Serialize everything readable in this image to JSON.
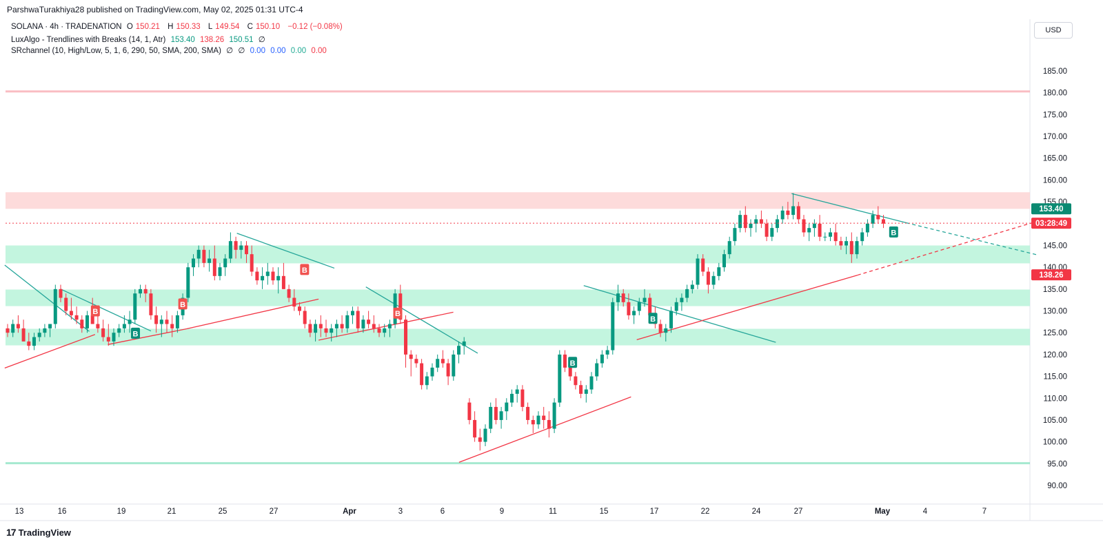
{
  "header": {
    "published_line": "ParshwaTurakhiya28 published on TradingView.com, May 02, 2025 01:31 UTC-4",
    "symbol_line": {
      "name": "SOLANA · 4h · TRADENATION",
      "o_label": "O",
      "o_val": "150.21",
      "h_label": "H",
      "h_val": "150.33",
      "l_label": "L",
      "l_val": "149.54",
      "c_label": "C",
      "c_val": "150.10",
      "change": "−0.12 (−0.08%)"
    },
    "indicator1": {
      "name": "LuxAlgo - Trendlines with Breaks (14, 1, Atr)",
      "v1": "153.40",
      "v2": "138.26",
      "v3": "150.51",
      "v4": "∅"
    },
    "indicator2": {
      "name": "SRchannel (10, High/Low, 5, 1, 6, 290, 50, SMA, 200, SMA)",
      "v1": "∅",
      "v2": "∅",
      "v3": "0.00",
      "v4": "0.00",
      "v5": "0.00",
      "v6": "0.00"
    },
    "currency_button": "USD"
  },
  "footer": {
    "brand": "TradingView",
    "brand_logo": "17"
  },
  "colors": {
    "up": "#089981",
    "down": "#f23645",
    "zone_green": "#b9f3d9",
    "zone_red": "#fdd5d5",
    "trend_teal": "#26a69a",
    "trend_red": "#f23645",
    "badge_teal": "#0a8f7a",
    "badge_red": "#f05350"
  },
  "chart_data": {
    "type": "candlestick",
    "symbol": "SOLANA",
    "timeframe": "4h",
    "y_range": [
      87,
      188
    ],
    "y_ticks": [
      "185.00",
      "180.00",
      "175.00",
      "170.00",
      "165.00",
      "160.00",
      "155.00",
      "150.00",
      "145.00",
      "140.00",
      "135.00",
      "130.00",
      "125.00",
      "120.00",
      "115.00",
      "110.00",
      "105.00",
      "100.00",
      "95.00",
      "90.00"
    ],
    "x_ticks": [
      "13",
      "16",
      "19",
      "21",
      "25",
      "27",
      "Apr",
      "3",
      "6",
      "9",
      "11",
      "15",
      "17",
      "22",
      "24",
      "27",
      "May",
      "4",
      "7"
    ],
    "price_labels": {
      "upper_trendline": "153.40",
      "countdown": "03:28:49",
      "lower_trendline": "138.26"
    },
    "current_price": 150.1,
    "zones": [
      {
        "type": "resistance",
        "low": 153.4,
        "high": 157.2
      },
      {
        "type": "support",
        "low": 140.9,
        "high": 145.0
      },
      {
        "type": "support",
        "low": 131.1,
        "high": 134.9
      },
      {
        "type": "support",
        "low": 122.1,
        "high": 125.9
      }
    ],
    "levels": [
      {
        "type": "resistance",
        "price": 180.3
      },
      {
        "type": "support",
        "price": 95.1
      }
    ],
    "trendlines": [
      {
        "kind": "down",
        "from": [
          -0.2,
          140.5
        ],
        "to": [
          5.7,
          125.3
        ]
      },
      {
        "kind": "down",
        "from": [
          3.7,
          135.0
        ],
        "to": [
          10.0,
          125.4
        ]
      },
      {
        "kind": "down",
        "from": [
          16.0,
          147.8
        ],
        "to": [
          22.8,
          139.8
        ]
      },
      {
        "kind": "down",
        "from": [
          25.0,
          135.5
        ],
        "to": [
          32.8,
          120.3
        ]
      },
      {
        "kind": "down",
        "from": [
          40.2,
          135.8
        ],
        "to": [
          53.6,
          122.8
        ]
      },
      {
        "kind": "down",
        "from": [
          54.7,
          156.9
        ],
        "to": [
          62.7,
          150.2
        ]
      },
      {
        "kind": "down_projection",
        "from": [
          62.7,
          150.2
        ],
        "to": [
          71.9,
          142.8
        ]
      },
      {
        "kind": "up",
        "from": [
          -0.2,
          116.9
        ],
        "to": [
          6.1,
          124.6
        ]
      },
      {
        "kind": "up",
        "from": [
          7.0,
          122.3
        ],
        "to": [
          12.5,
          125.9
        ]
      },
      {
        "kind": "up",
        "from": [
          12.5,
          125.9
        ],
        "to": [
          21.7,
          132.7
        ]
      },
      {
        "kind": "up",
        "from": [
          21.7,
          123.3
        ],
        "to": [
          31.1,
          129.7
        ]
      },
      {
        "kind": "up",
        "from": [
          31.5,
          95.3
        ],
        "to": [
          43.5,
          110.3
        ]
      },
      {
        "kind": "up",
        "from": [
          43.9,
          123.4
        ],
        "to": [
          59.3,
          138.2
        ]
      },
      {
        "kind": "up_projection",
        "from": [
          59.3,
          138.2
        ],
        "to": [
          71.9,
          150.6
        ]
      }
    ],
    "signals": [
      {
        "label": "B",
        "type": "down_break",
        "x": 6.1,
        "price": 130.0
      },
      {
        "label": "B",
        "type": "up_break",
        "x": 8.9,
        "price": 124.9
      },
      {
        "label": "B",
        "type": "down_break",
        "x": 12.2,
        "price": 131.6
      },
      {
        "label": "B",
        "type": "down_break",
        "x": 20.7,
        "price": 139.5
      },
      {
        "label": "B",
        "type": "down_break",
        "x": 27.2,
        "price": 129.5
      },
      {
        "label": "B",
        "type": "up_break",
        "x": 39.4,
        "price": 118.2
      },
      {
        "label": "B",
        "type": "up_break",
        "x": 45.0,
        "price": 128.3
      },
      {
        "label": "B",
        "type": "up_break",
        "x": 61.8,
        "price": 148.1
      }
    ],
    "candles": [
      [
        126,
        127,
        124,
        125
      ],
      [
        125,
        128,
        124,
        127
      ],
      [
        127,
        129,
        125,
        126
      ],
      [
        126,
        128,
        124,
        123
      ],
      [
        123,
        125,
        121,
        122
      ],
      [
        122,
        125,
        121,
        124
      ],
      [
        124,
        126,
        123,
        125
      ],
      [
        125,
        127,
        124,
        126
      ],
      [
        126,
        127,
        124,
        127
      ],
      [
        127,
        136,
        126,
        135
      ],
      [
        135,
        136,
        132,
        133
      ],
      [
        133,
        134,
        129,
        130
      ],
      [
        130,
        133,
        128,
        129
      ],
      [
        129,
        131,
        127,
        128
      ],
      [
        128,
        129,
        125,
        126
      ],
      [
        126,
        130,
        125,
        129
      ],
      [
        129,
        133,
        127,
        127
      ],
      [
        127,
        130,
        125,
        126
      ],
      [
        126,
        128,
        123,
        124
      ],
      [
        124,
        127,
        122,
        123
      ],
      [
        123,
        126,
        122,
        125
      ],
      [
        125,
        127,
        124,
        126
      ],
      [
        126,
        129,
        125,
        127
      ],
      [
        127,
        130,
        125,
        128
      ],
      [
        128,
        135,
        127,
        134
      ],
      [
        134,
        136,
        133,
        135
      ],
      [
        135,
        136,
        132,
        134
      ],
      [
        134,
        135,
        128,
        129
      ],
      [
        129,
        131,
        125,
        127
      ],
      [
        127,
        129,
        124,
        128
      ],
      [
        128,
        130,
        125,
        127
      ],
      [
        127,
        129,
        124,
        126
      ],
      [
        126,
        130,
        125,
        129
      ],
      [
        129,
        134,
        128,
        133
      ],
      [
        133,
        141,
        132,
        140
      ],
      [
        140,
        143,
        138,
        142
      ],
      [
        142,
        145,
        140,
        144
      ],
      [
        144,
        145,
        140,
        141
      ],
      [
        141,
        144,
        139,
        142
      ],
      [
        142,
        145,
        137,
        138
      ],
      [
        138,
        141,
        137,
        140
      ],
      [
        140,
        143,
        138,
        142
      ],
      [
        142,
        148,
        141,
        146
      ],
      [
        146,
        147,
        142,
        144
      ],
      [
        144,
        146,
        142,
        145
      ],
      [
        145,
        146,
        141,
        143
      ],
      [
        143,
        145,
        138,
        139
      ],
      [
        139,
        140,
        136,
        137
      ],
      [
        137,
        140,
        135,
        138
      ],
      [
        138,
        141,
        136,
        139
      ],
      [
        139,
        140,
        136,
        137
      ],
      [
        137,
        140,
        134,
        138
      ],
      [
        138,
        141,
        135,
        135
      ],
      [
        135,
        136,
        132,
        133
      ],
      [
        133,
        135,
        130,
        131
      ],
      [
        131,
        132,
        129,
        130
      ],
      [
        130,
        131,
        126,
        127
      ],
      [
        127,
        128,
        124,
        125
      ],
      [
        125,
        128,
        123,
        127
      ],
      [
        127,
        129,
        124,
        126
      ],
      [
        126,
        128,
        124,
        125
      ],
      [
        125,
        127,
        123,
        126
      ],
      [
        126,
        128,
        124,
        127
      ],
      [
        127,
        129,
        125,
        126
      ],
      [
        126,
        130,
        125,
        129
      ],
      [
        129,
        131,
        127,
        130
      ],
      [
        130,
        131,
        125,
        126
      ],
      [
        126,
        129,
        125,
        128
      ],
      [
        128,
        130,
        126,
        127
      ],
      [
        127,
        129,
        125,
        126
      ],
      [
        126,
        127,
        124,
        125
      ],
      [
        125,
        127,
        124,
        126
      ],
      [
        126,
        128,
        124,
        127
      ],
      [
        127,
        135,
        126,
        134
      ],
      [
        134,
        136,
        127,
        128
      ],
      [
        128,
        129,
        117,
        120
      ],
      [
        120,
        121,
        115,
        119
      ],
      [
        119,
        120,
        117,
        118
      ],
      [
        118,
        119,
        112,
        113
      ],
      [
        113,
        116,
        112,
        115
      ],
      [
        115,
        118,
        114,
        117
      ],
      [
        117,
        120,
        116,
        119
      ],
      [
        119,
        121,
        117,
        118
      ],
      [
        118,
        119,
        113,
        115
      ],
      [
        115,
        121,
        114,
        120
      ],
      [
        120,
        123,
        118,
        122
      ],
      [
        122,
        124,
        120,
        123
      ],
      [
        109,
        110,
        104,
        105
      ],
      [
        105,
        107,
        100,
        101
      ],
      [
        101,
        103,
        98,
        100
      ],
      [
        100,
        104,
        99,
        103
      ],
      [
        103,
        109,
        102,
        108
      ],
      [
        108,
        110,
        104,
        105
      ],
      [
        105,
        108,
        103,
        107
      ],
      [
        107,
        110,
        105,
        109
      ],
      [
        109,
        112,
        108,
        111
      ],
      [
        111,
        113,
        109,
        112
      ],
      [
        112,
        113,
        107,
        108
      ],
      [
        108,
        109,
        104,
        105
      ],
      [
        105,
        106,
        102,
        104
      ],
      [
        104,
        107,
        103,
        106
      ],
      [
        106,
        108,
        103,
        105
      ],
      [
        105,
        107,
        101,
        103
      ],
      [
        103,
        110,
        102,
        109
      ],
      [
        109,
        121,
        108,
        120
      ],
      [
        120,
        121,
        116,
        117
      ],
      [
        117,
        118,
        114,
        115
      ],
      [
        115,
        116,
        112,
        113
      ],
      [
        113,
        114,
        110,
        111
      ],
      [
        111,
        113,
        109,
        112
      ],
      [
        112,
        116,
        111,
        115
      ],
      [
        115,
        119,
        114,
        118
      ],
      [
        118,
        121,
        117,
        120
      ],
      [
        120,
        122,
        119,
        121
      ],
      [
        121,
        133,
        120,
        132
      ],
      [
        132,
        136,
        130,
        134
      ],
      [
        134,
        135,
        131,
        132
      ],
      [
        132,
        134,
        128,
        129
      ],
      [
        129,
        131,
        127,
        130
      ],
      [
        130,
        133,
        129,
        132
      ],
      [
        132,
        135,
        131,
        133
      ],
      [
        133,
        134,
        128,
        129
      ],
      [
        129,
        131,
        126,
        127
      ],
      [
        127,
        128,
        124,
        125
      ],
      [
        125,
        127,
        123,
        126
      ],
      [
        126,
        131,
        125,
        130
      ],
      [
        130,
        133,
        129,
        132
      ],
      [
        132,
        134,
        130,
        133
      ],
      [
        133,
        136,
        132,
        135
      ],
      [
        135,
        137,
        134,
        136
      ],
      [
        136,
        143,
        135,
        142
      ],
      [
        142,
        143,
        138,
        139
      ],
      [
        139,
        140,
        134,
        136
      ],
      [
        136,
        139,
        135,
        138
      ],
      [
        138,
        141,
        137,
        140
      ],
      [
        140,
        144,
        139,
        143
      ],
      [
        143,
        147,
        142,
        146
      ],
      [
        146,
        150,
        145,
        149
      ],
      [
        149,
        153,
        148,
        152
      ],
      [
        152,
        154,
        148,
        149
      ],
      [
        149,
        151,
        147,
        150
      ],
      [
        150,
        152,
        148,
        151
      ],
      [
        151,
        153,
        149,
        150
      ],
      [
        150,
        151,
        146,
        147
      ],
      [
        147,
        150,
        146,
        149
      ],
      [
        149,
        152,
        148,
        151
      ],
      [
        151,
        154,
        150,
        153
      ],
      [
        153,
        155,
        151,
        152
      ],
      [
        152,
        157,
        151,
        154
      ],
      [
        154,
        155,
        150,
        151
      ],
      [
        151,
        152,
        147,
        148
      ],
      [
        148,
        150,
        146,
        149
      ],
      [
        149,
        151,
        147,
        150
      ],
      [
        150,
        152,
        146,
        147
      ],
      [
        147,
        148,
        146,
        147
      ],
      [
        147,
        149,
        146,
        148
      ],
      [
        148,
        150,
        145,
        146
      ],
      [
        146,
        147,
        144,
        145
      ],
      [
        145,
        147,
        143,
        146
      ],
      [
        146,
        148,
        141,
        143
      ],
      [
        143,
        147,
        142,
        146
      ],
      [
        146,
        149,
        145,
        148
      ],
      [
        148,
        151,
        147,
        150
      ],
      [
        150,
        153,
        149,
        152
      ],
      [
        152,
        154,
        150,
        151
      ],
      [
        151,
        152,
        149,
        150
      ]
    ],
    "dashed_price_line": 150.1
  }
}
